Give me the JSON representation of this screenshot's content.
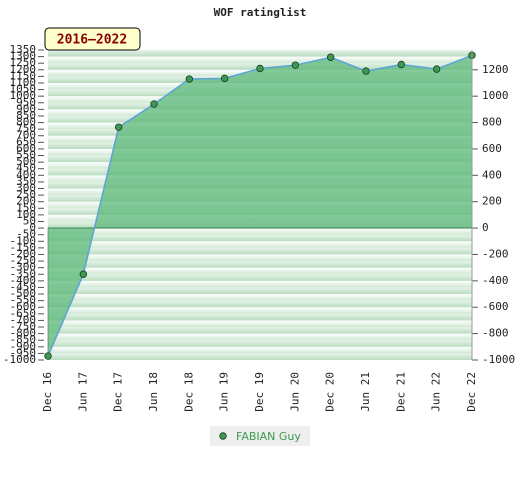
{
  "chart_data": {
    "type": "area",
    "title": "WOF ratinglist",
    "badge": "2016–2022",
    "categories": [
      "Dec 16",
      "Jun 17",
      "Dec 17",
      "Jun 18",
      "Dec 18",
      "Jun 19",
      "Dec 19",
      "Jun 20",
      "Dec 20",
      "Jun 21",
      "Dec 21",
      "Jun 22",
      "Dec 22"
    ],
    "series": [
      {
        "name": "FABIAN Guy",
        "color": "#3c9a50",
        "line_color": "#5ba3d9",
        "area_color": "#5cb87a",
        "values": [
          -970,
          -350,
          765,
          940,
          1130,
          1135,
          1210,
          1235,
          1295,
          1190,
          1240,
          1205,
          1310
        ]
      }
    ],
    "ylim": [
      -1000,
      1350
    ],
    "yticks": [
      -1000,
      -950,
      -900,
      -850,
      -800,
      -750,
      -700,
      -650,
      -600,
      -550,
      -500,
      -450,
      -400,
      -350,
      -300,
      -250,
      -200,
      -150,
      -100,
      -50,
      0,
      50,
      100,
      150,
      200,
      250,
      300,
      350,
      400,
      450,
      500,
      550,
      600,
      650,
      700,
      750,
      800,
      850,
      900,
      950,
      1000,
      1050,
      1100,
      1150,
      1200,
      1250,
      1300,
      1350
    ],
    "y2lim": [
      -1000,
      1350
    ],
    "y2ticks": [
      -1000,
      -800,
      -600,
      -400,
      -200,
      0,
      200,
      400,
      600,
      800,
      1000,
      1200
    ]
  }
}
